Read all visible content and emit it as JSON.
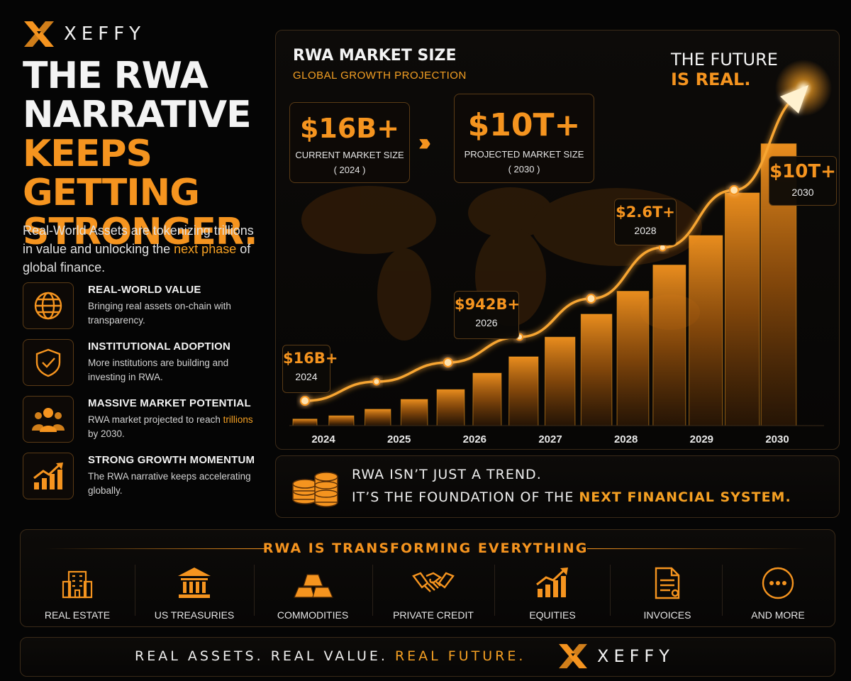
{
  "brand": {
    "name": "XEFFY"
  },
  "headline": {
    "line1": "THE RWA",
    "line2": "NARRATIVE",
    "line3": "KEEPS GETTING",
    "line4": "STRONGER."
  },
  "lede": {
    "before": "Real-World Assets are tokenizing trillions in value and unlocking the ",
    "highlight": "next phase",
    "after": " of global finance."
  },
  "features": [
    {
      "icon": "globe-icon",
      "title": "REAL-WORLD VALUE",
      "desc": "Bringing real assets on-chain with transparency.",
      "highlight": "",
      "desc_after": ""
    },
    {
      "icon": "shield-check-icon",
      "title": "INSTITUTIONAL ADOPTION",
      "desc": "More institutions are building and investing in RWA.",
      "highlight": "",
      "desc_after": ""
    },
    {
      "icon": "people-icon",
      "title": "MASSIVE MARKET POTENTIAL",
      "desc": "RWA market projected to reach ",
      "highlight": "trillions",
      "desc_after": " by 2030."
    },
    {
      "icon": "growth-chart-icon",
      "title": "STRONG GROWTH MOMENTUM",
      "desc": "The RWA narrative  keeps accelerating globally.",
      "highlight": "",
      "desc_after": ""
    }
  ],
  "stats": {
    "current": {
      "value": "$16B+",
      "label": "CURRENT MARKET SIZE",
      "year": "( 2024 )"
    },
    "projected": {
      "value": "$10T+",
      "label": "PROJECTED MARKET SIZE",
      "year": "( 2030 )"
    },
    "arrow": "›››"
  },
  "future": {
    "line1": "THE FUTURE",
    "line2": "IS REAL."
  },
  "chart_data": {
    "type": "bar",
    "title": "RWA MARKET SIZE",
    "subtitle": "GLOBAL GROWTH PROJECTION",
    "categories": [
      "2024",
      "2025",
      "2026",
      "2027",
      "2028",
      "2029",
      "2030"
    ],
    "bar_levels": [
      0.02,
      0.03,
      0.05,
      0.08,
      0.11,
      0.16,
      0.21,
      0.27,
      0.34,
      0.41,
      0.49,
      0.58,
      0.71,
      0.86
    ],
    "curve_levels": [
      0.02,
      0.08,
      0.14,
      0.22,
      0.34,
      0.5,
      0.68,
      0.98
    ],
    "callouts": [
      {
        "value": "$16B+",
        "year": "2024"
      },
      {
        "value": "$942B+",
        "year": "2026"
      },
      {
        "value": "$2.6T+",
        "year": "2028"
      },
      {
        "value": "$10T+",
        "year": "2030"
      }
    ],
    "accent": "#f5941f"
  },
  "tagline": {
    "line1": "RWA ISN’T JUST A TREND.",
    "line2_before": "IT’S THE FOUNDATION OF THE ",
    "line2_highlight": "NEXT FINANCIAL SYSTEM."
  },
  "transform": {
    "title": "RWA IS TRANSFORMING EVERYTHING",
    "categories": [
      {
        "icon": "building-icon",
        "label": "REAL ESTATE"
      },
      {
        "icon": "bank-icon",
        "label": "US TREASURIES"
      },
      {
        "icon": "gold-bars-icon",
        "label": "COMMODITIES"
      },
      {
        "icon": "handshake-icon",
        "label": "PRIVATE CREDIT"
      },
      {
        "icon": "bar-chart-icon",
        "label": "EQUITIES"
      },
      {
        "icon": "document-icon",
        "label": "INVOICES"
      },
      {
        "icon": "more-icon",
        "label": "AND MORE"
      }
    ]
  },
  "footer": {
    "part1": "REAL ASSETS. REAL VALUE. ",
    "highlight": "REAL FUTURE.",
    "brand": "XEFFY"
  }
}
